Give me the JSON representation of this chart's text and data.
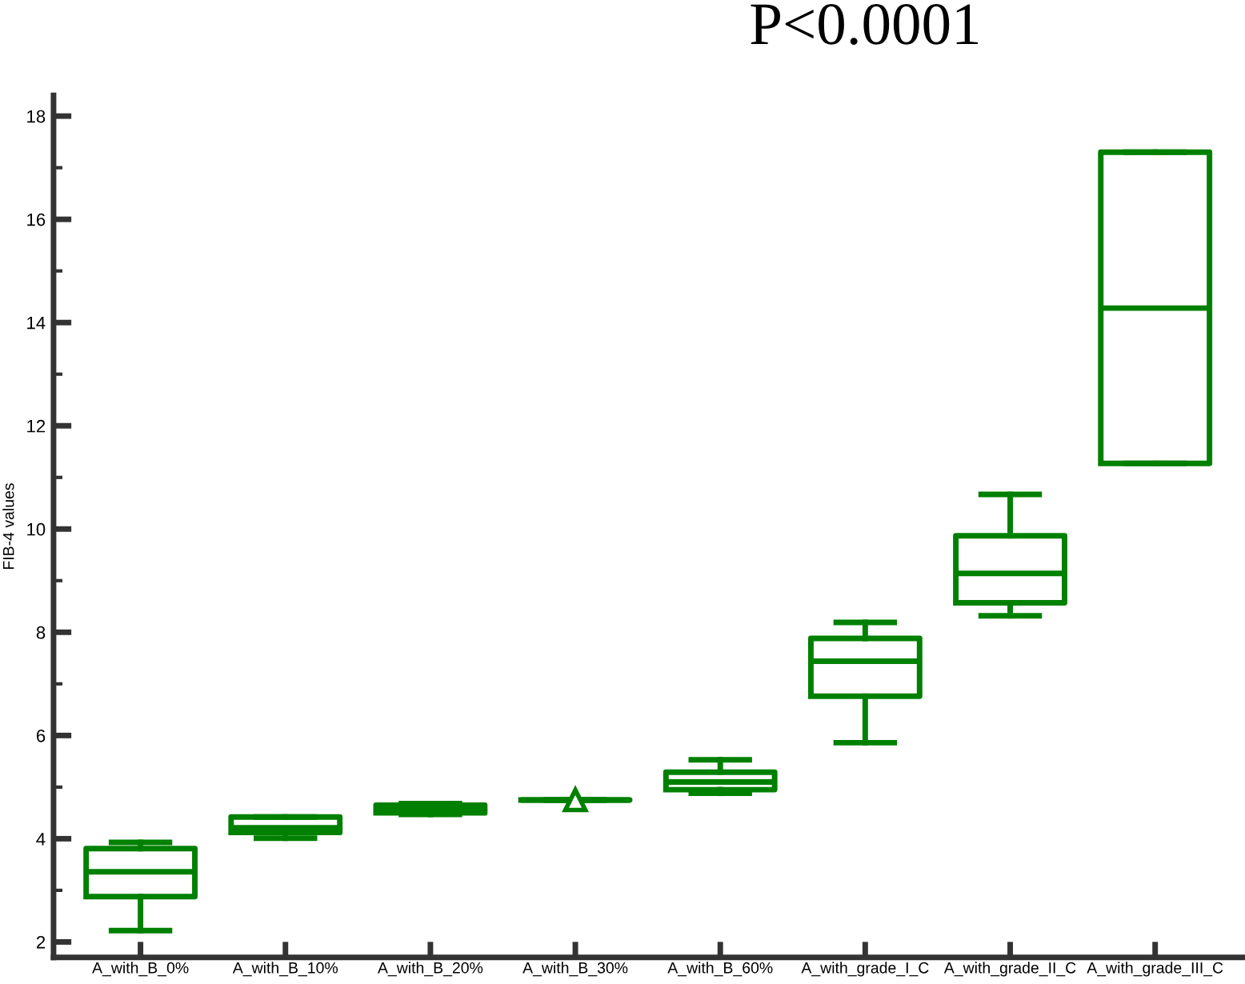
{
  "chart_data": {
    "type": "box",
    "categories": [
      "A_with_B_0%",
      "A_with_B_10%",
      "A_with_B_20%",
      "A_with_B_30%",
      "A_with_B_60%",
      "A_with_grade_I_C",
      "A_with_grade_II_C",
      "A_with_grade_III_C"
    ],
    "ylabel": "FIB-4 values",
    "annotations": [
      "P<0.0001"
    ],
    "color": "#008000",
    "boxes": [
      {
        "low": 2.22,
        "q1": 2.88,
        "median": 3.36,
        "q3": 3.81,
        "high": 3.93
      },
      {
        "low": 4.01,
        "q1": 4.12,
        "median": 4.21,
        "q3": 4.42,
        "high": 4.42
      },
      {
        "low": 4.47,
        "q1": 4.5,
        "median": 4.57,
        "q3": 4.65,
        "high": 4.68
      },
      {
        "low": 4.75,
        "q1": 4.75,
        "median": 4.75,
        "q3": 4.75,
        "high": 4.75,
        "mean": 4.75
      },
      {
        "low": 4.88,
        "q1": 4.95,
        "median": 5.1,
        "q3": 5.29,
        "high": 5.53
      },
      {
        "low": 5.86,
        "q1": 6.76,
        "median": 7.44,
        "q3": 7.88,
        "high": 8.19
      },
      {
        "low": 8.32,
        "q1": 8.57,
        "median": 9.14,
        "q3": 9.87,
        "high": 10.67
      },
      {
        "low": 11.27,
        "q1": 11.27,
        "median": 14.28,
        "q3": 17.3,
        "high": 17.3
      }
    ],
    "ylim": [
      1.7,
      18.4
    ],
    "yticks": [
      2,
      {
        "value": 3,
        "label": null
      },
      4,
      {
        "value": 5,
        "label": null
      },
      6,
      {
        "value": 7,
        "label": null
      },
      8,
      {
        "value": 9,
        "label": null
      },
      10,
      {
        "value": 11,
        "label": null
      },
      12,
      {
        "value": 13,
        "label": null
      },
      14,
      {
        "value": 15,
        "label": null
      },
      16,
      {
        "value": 17,
        "label": null
      },
      18
    ],
    "grid": false,
    "legend": false
  }
}
